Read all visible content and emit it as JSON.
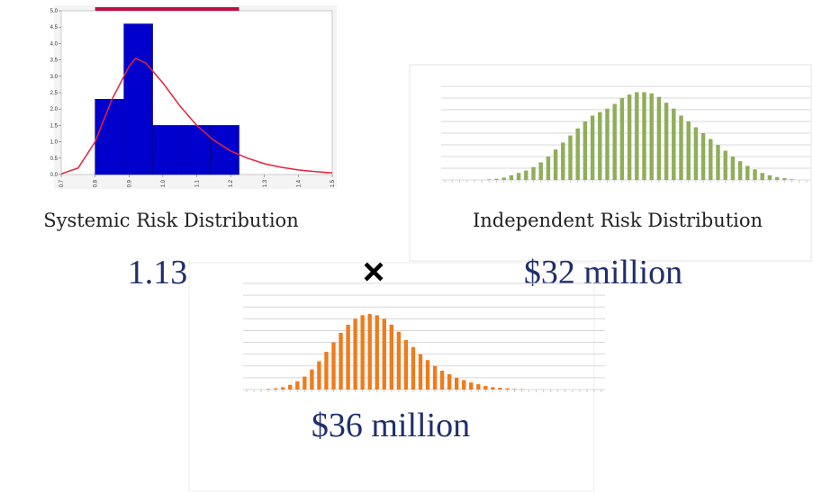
{
  "chart_data": [
    {
      "type": "histogram",
      "title": "Systemic Risk Distribution",
      "bins": [
        0.8,
        0.885,
        0.97,
        1.055,
        1.14,
        1.225
      ],
      "counts": [
        2.3,
        4.6,
        1.5,
        1.5,
        1.5
      ],
      "color": "#0000cc",
      "curve": {
        "x": [
          0.7,
          0.75,
          0.8,
          0.85,
          0.9,
          0.92,
          0.95,
          1.0,
          1.05,
          1.1,
          1.15,
          1.2,
          1.25,
          1.3,
          1.35,
          1.4,
          1.45,
          1.5
        ],
        "values": [
          0.02,
          0.2,
          1.0,
          2.3,
          3.3,
          3.55,
          3.4,
          2.8,
          2.1,
          1.5,
          1.05,
          0.72,
          0.5,
          0.33,
          0.22,
          0.14,
          0.09,
          0.05
        ],
        "color": "#e8203a"
      },
      "xlim": [
        0.7,
        1.5
      ],
      "xticks": [
        0.7,
        0.8,
        0.9,
        {
          "value": 1,
          "label": "1.0"
        },
        1.1,
        1.2,
        1.3,
        1.4,
        1.5
      ],
      "ylim": [
        0,
        5
      ],
      "yticks": [
        {
          "value": 0,
          "label": "0.0"
        },
        0.5,
        {
          "value": 1,
          "label": "1.0"
        },
        1.5,
        {
          "value": 2,
          "label": "2.0"
        },
        2.5,
        {
          "value": 3,
          "label": "3.0"
        },
        3.5,
        {
          "value": 4,
          "label": "4.0"
        },
        4.5,
        {
          "value": 5,
          "label": "5.0"
        }
      ]
    },
    {
      "type": "bar",
      "title": "Independent Risk Distribution",
      "color": "#8fae5a",
      "values": [
        0,
        0,
        0,
        0,
        0,
        0,
        0.05,
        0.1,
        0.2,
        0.4,
        0.6,
        0.8,
        1.1,
        1.5,
        2,
        2.6,
        3.2,
        3.8,
        4.4,
        5,
        5.5,
        5.8,
        6.1,
        6.5,
        7,
        7.3,
        7.5,
        7.5,
        7.4,
        7.1,
        6.6,
        6.1,
        5.5,
        5,
        4.5,
        4,
        3.5,
        3,
        2.5,
        2,
        1.6,
        1.2,
        0.9,
        0.6,
        0.4,
        0.25,
        0.15,
        0.05,
        0,
        0
      ],
      "ylim": [
        0,
        8
      ],
      "gridlines": [
        0,
        1,
        2,
        3,
        4,
        5,
        6,
        7,
        8
      ]
    },
    {
      "type": "bar",
      "color": "#f07a1c",
      "values": [
        0,
        0,
        0,
        0.05,
        0.1,
        0.2,
        0.4,
        0.7,
        1.1,
        1.7,
        2.4,
        3.2,
        4,
        4.8,
        5.5,
        6,
        6.3,
        6.4,
        6.3,
        6,
        5.5,
        4.9,
        4.2,
        3.6,
        3,
        2.5,
        2,
        1.6,
        1.3,
        1,
        0.8,
        0.6,
        0.45,
        0.3,
        0.2,
        0.15,
        0.1,
        0.05,
        0.03,
        0,
        0,
        0,
        0,
        0,
        0,
        0,
        0,
        0,
        0,
        0
      ],
      "ylim": [
        0,
        9
      ],
      "gridlines": [
        0,
        1,
        2,
        3,
        4,
        5,
        6,
        7,
        8,
        9
      ]
    }
  ],
  "slide": {
    "systemic_factor": "1.13",
    "operator": "×",
    "independent_value": "$32 million",
    "result": "$36 million"
  }
}
